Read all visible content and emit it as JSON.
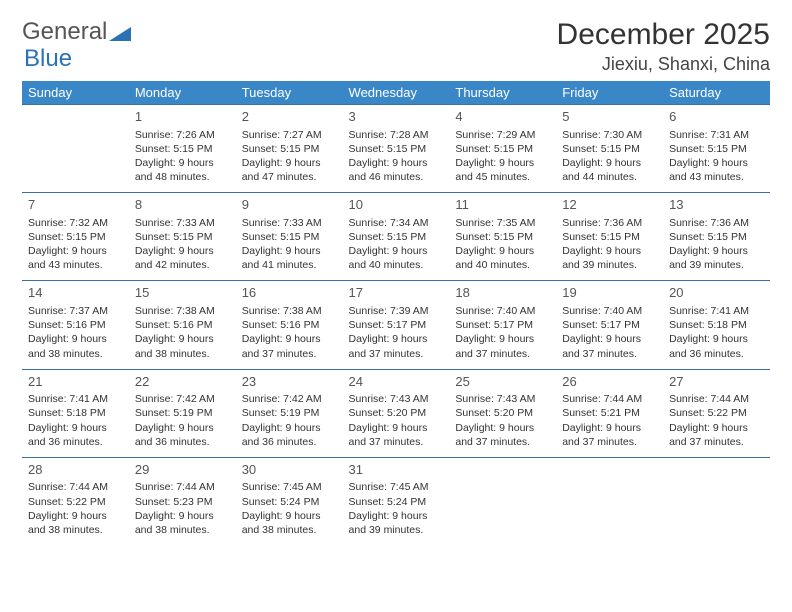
{
  "logo": {
    "text_a": "General",
    "text_b": "Blue"
  },
  "title": "December 2025",
  "location": "Jiexiu, Shanxi, China",
  "colors": {
    "header_bg": "#3a87c8",
    "header_text": "#ffffff",
    "row_border": "#3a6ea5",
    "body_text": "#333333",
    "logo_gray": "#555555",
    "logo_blue": "#2a72b5"
  },
  "day_names": [
    "Sunday",
    "Monday",
    "Tuesday",
    "Wednesday",
    "Thursday",
    "Friday",
    "Saturday"
  ],
  "weeks": [
    [
      {
        "n": "",
        "sr": "",
        "ss": "",
        "dl": ""
      },
      {
        "n": "1",
        "sr": "Sunrise: 7:26 AM",
        "ss": "Sunset: 5:15 PM",
        "dl": "Daylight: 9 hours and 48 minutes."
      },
      {
        "n": "2",
        "sr": "Sunrise: 7:27 AM",
        "ss": "Sunset: 5:15 PM",
        "dl": "Daylight: 9 hours and 47 minutes."
      },
      {
        "n": "3",
        "sr": "Sunrise: 7:28 AM",
        "ss": "Sunset: 5:15 PM",
        "dl": "Daylight: 9 hours and 46 minutes."
      },
      {
        "n": "4",
        "sr": "Sunrise: 7:29 AM",
        "ss": "Sunset: 5:15 PM",
        "dl": "Daylight: 9 hours and 45 minutes."
      },
      {
        "n": "5",
        "sr": "Sunrise: 7:30 AM",
        "ss": "Sunset: 5:15 PM",
        "dl": "Daylight: 9 hours and 44 minutes."
      },
      {
        "n": "6",
        "sr": "Sunrise: 7:31 AM",
        "ss": "Sunset: 5:15 PM",
        "dl": "Daylight: 9 hours and 43 minutes."
      }
    ],
    [
      {
        "n": "7",
        "sr": "Sunrise: 7:32 AM",
        "ss": "Sunset: 5:15 PM",
        "dl": "Daylight: 9 hours and 43 minutes."
      },
      {
        "n": "8",
        "sr": "Sunrise: 7:33 AM",
        "ss": "Sunset: 5:15 PM",
        "dl": "Daylight: 9 hours and 42 minutes."
      },
      {
        "n": "9",
        "sr": "Sunrise: 7:33 AM",
        "ss": "Sunset: 5:15 PM",
        "dl": "Daylight: 9 hours and 41 minutes."
      },
      {
        "n": "10",
        "sr": "Sunrise: 7:34 AM",
        "ss": "Sunset: 5:15 PM",
        "dl": "Daylight: 9 hours and 40 minutes."
      },
      {
        "n": "11",
        "sr": "Sunrise: 7:35 AM",
        "ss": "Sunset: 5:15 PM",
        "dl": "Daylight: 9 hours and 40 minutes."
      },
      {
        "n": "12",
        "sr": "Sunrise: 7:36 AM",
        "ss": "Sunset: 5:15 PM",
        "dl": "Daylight: 9 hours and 39 minutes."
      },
      {
        "n": "13",
        "sr": "Sunrise: 7:36 AM",
        "ss": "Sunset: 5:15 PM",
        "dl": "Daylight: 9 hours and 39 minutes."
      }
    ],
    [
      {
        "n": "14",
        "sr": "Sunrise: 7:37 AM",
        "ss": "Sunset: 5:16 PM",
        "dl": "Daylight: 9 hours and 38 minutes."
      },
      {
        "n": "15",
        "sr": "Sunrise: 7:38 AM",
        "ss": "Sunset: 5:16 PM",
        "dl": "Daylight: 9 hours and 38 minutes."
      },
      {
        "n": "16",
        "sr": "Sunrise: 7:38 AM",
        "ss": "Sunset: 5:16 PM",
        "dl": "Daylight: 9 hours and 37 minutes."
      },
      {
        "n": "17",
        "sr": "Sunrise: 7:39 AM",
        "ss": "Sunset: 5:17 PM",
        "dl": "Daylight: 9 hours and 37 minutes."
      },
      {
        "n": "18",
        "sr": "Sunrise: 7:40 AM",
        "ss": "Sunset: 5:17 PM",
        "dl": "Daylight: 9 hours and 37 minutes."
      },
      {
        "n": "19",
        "sr": "Sunrise: 7:40 AM",
        "ss": "Sunset: 5:17 PM",
        "dl": "Daylight: 9 hours and 37 minutes."
      },
      {
        "n": "20",
        "sr": "Sunrise: 7:41 AM",
        "ss": "Sunset: 5:18 PM",
        "dl": "Daylight: 9 hours and 36 minutes."
      }
    ],
    [
      {
        "n": "21",
        "sr": "Sunrise: 7:41 AM",
        "ss": "Sunset: 5:18 PM",
        "dl": "Daylight: 9 hours and 36 minutes."
      },
      {
        "n": "22",
        "sr": "Sunrise: 7:42 AM",
        "ss": "Sunset: 5:19 PM",
        "dl": "Daylight: 9 hours and 36 minutes."
      },
      {
        "n": "23",
        "sr": "Sunrise: 7:42 AM",
        "ss": "Sunset: 5:19 PM",
        "dl": "Daylight: 9 hours and 36 minutes."
      },
      {
        "n": "24",
        "sr": "Sunrise: 7:43 AM",
        "ss": "Sunset: 5:20 PM",
        "dl": "Daylight: 9 hours and 37 minutes."
      },
      {
        "n": "25",
        "sr": "Sunrise: 7:43 AM",
        "ss": "Sunset: 5:20 PM",
        "dl": "Daylight: 9 hours and 37 minutes."
      },
      {
        "n": "26",
        "sr": "Sunrise: 7:44 AM",
        "ss": "Sunset: 5:21 PM",
        "dl": "Daylight: 9 hours and 37 minutes."
      },
      {
        "n": "27",
        "sr": "Sunrise: 7:44 AM",
        "ss": "Sunset: 5:22 PM",
        "dl": "Daylight: 9 hours and 37 minutes."
      }
    ],
    [
      {
        "n": "28",
        "sr": "Sunrise: 7:44 AM",
        "ss": "Sunset: 5:22 PM",
        "dl": "Daylight: 9 hours and 38 minutes."
      },
      {
        "n": "29",
        "sr": "Sunrise: 7:44 AM",
        "ss": "Sunset: 5:23 PM",
        "dl": "Daylight: 9 hours and 38 minutes."
      },
      {
        "n": "30",
        "sr": "Sunrise: 7:45 AM",
        "ss": "Sunset: 5:24 PM",
        "dl": "Daylight: 9 hours and 38 minutes."
      },
      {
        "n": "31",
        "sr": "Sunrise: 7:45 AM",
        "ss": "Sunset: 5:24 PM",
        "dl": "Daylight: 9 hours and 39 minutes."
      },
      {
        "n": "",
        "sr": "",
        "ss": "",
        "dl": ""
      },
      {
        "n": "",
        "sr": "",
        "ss": "",
        "dl": ""
      },
      {
        "n": "",
        "sr": "",
        "ss": "",
        "dl": ""
      }
    ]
  ]
}
